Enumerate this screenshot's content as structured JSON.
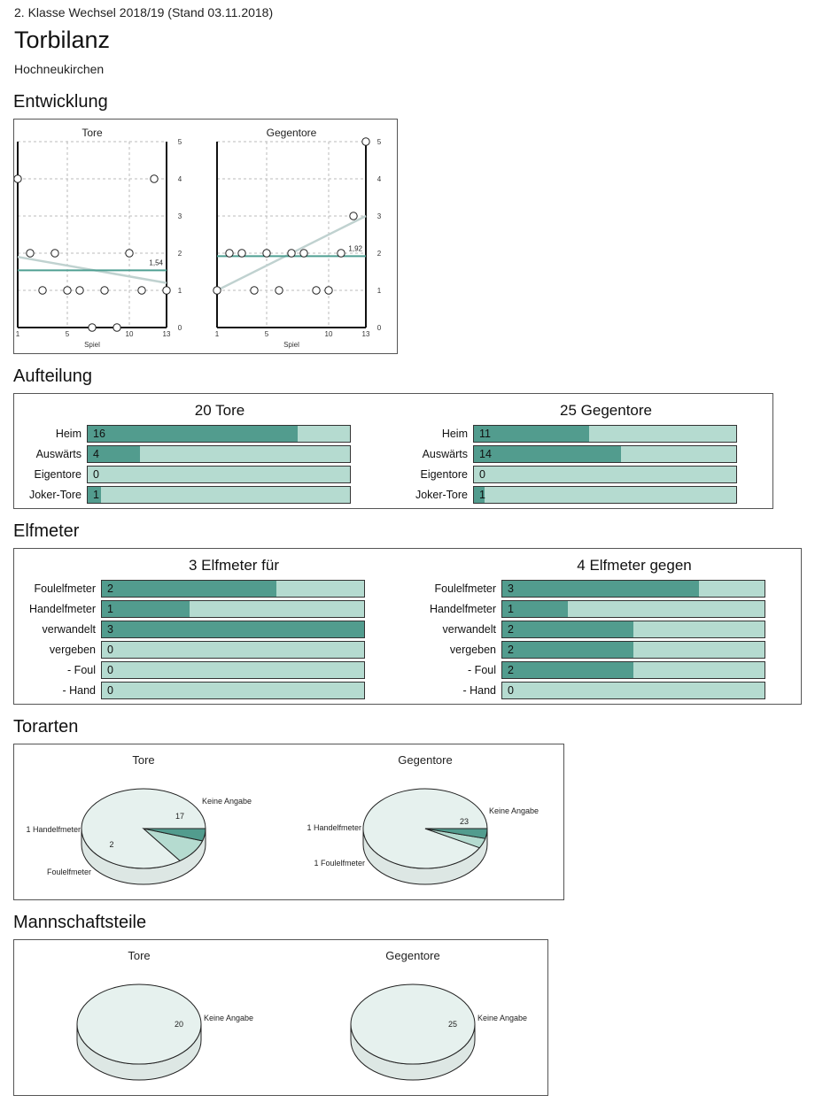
{
  "header": {
    "league": "2. Klasse Wechsel 2018/19 (Stand 03.11.2018)",
    "title": "Torbilanz",
    "team": "Hochneukirchen"
  },
  "sections": {
    "entwicklung": "Entwicklung",
    "aufteilung": "Aufteilung",
    "elfmeter": "Elfmeter",
    "torarten": "Torarten",
    "mannschaftsteile": "Mannschaftsteile"
  },
  "colors": {
    "dark": "#529c8e",
    "light": "#b5dbd0",
    "pie": "#e6f1ee",
    "trend": "#c0d2d0",
    "avg": "#4f9f92"
  },
  "chart_data": [
    {
      "type": "line",
      "title": "Tore",
      "xlabel": "Spiel",
      "x_ticks": [
        1,
        5,
        10,
        13
      ],
      "y_ticks": [
        0,
        1,
        2,
        3,
        4,
        5
      ],
      "ylim": [
        0,
        5
      ],
      "xlim": [
        1,
        13
      ],
      "games": [
        1,
        2,
        3,
        4,
        5,
        6,
        7,
        8,
        9,
        10,
        11,
        12,
        13
      ],
      "values": [
        4,
        2,
        1,
        2,
        1,
        1,
        0,
        1,
        0,
        2,
        1,
        4,
        1
      ],
      "average": 1.54,
      "average_label": "1,54",
      "trend": [
        1.9,
        1.2
      ]
    },
    {
      "type": "line",
      "title": "Gegentore",
      "xlabel": "Spiel",
      "x_ticks": [
        1,
        5,
        10,
        13
      ],
      "y_ticks": [
        0,
        1,
        2,
        3,
        4,
        5
      ],
      "ylim": [
        0,
        5
      ],
      "xlim": [
        1,
        13
      ],
      "games": [
        1,
        2,
        3,
        4,
        5,
        6,
        7,
        8,
        9,
        10,
        11,
        12,
        13
      ],
      "values": [
        1,
        2,
        2,
        1,
        2,
        1,
        2,
        2,
        1,
        1,
        2,
        3,
        5
      ],
      "average": 1.92,
      "average_label": "1,92",
      "trend": [
        1.0,
        3.0
      ]
    },
    {
      "type": "bar",
      "title": "20 Tore",
      "max": 20,
      "categories": [
        "Heim",
        "Auswärts",
        "Eigentore",
        "Joker-Tore"
      ],
      "values": [
        16,
        4,
        0,
        1
      ]
    },
    {
      "type": "bar",
      "title": "25 Gegentore",
      "max": 25,
      "categories": [
        "Heim",
        "Auswärts",
        "Eigentore",
        "Joker-Tore"
      ],
      "values": [
        11,
        14,
        0,
        1
      ]
    },
    {
      "type": "bar",
      "title": "3 Elfmeter für",
      "max": 3,
      "categories": [
        "Foulelfmeter",
        "Handelfmeter",
        "verwandelt",
        "vergeben",
        "- Foul",
        "- Hand"
      ],
      "values": [
        2,
        1,
        3,
        0,
        0,
        0
      ]
    },
    {
      "type": "bar",
      "title": "4 Elfmeter gegen",
      "max": 4,
      "categories": [
        "Foulelfmeter",
        "Handelfmeter",
        "verwandelt",
        "vergeben",
        "- Foul",
        "- Hand"
      ],
      "values": [
        3,
        1,
        2,
        2,
        2,
        0
      ]
    },
    {
      "type": "pie",
      "title": "Tore",
      "slices": [
        {
          "value": 17,
          "value_label": "17",
          "label": "Keine Angabe",
          "color": "#e6f1ee"
        },
        {
          "value": 2,
          "value_label": "2",
          "label": "Foulelfmeter",
          "color": "#b5dbd0"
        },
        {
          "value": 1,
          "value_label": "",
          "label": "1 Handelfmeter",
          "color": "#529c8e"
        }
      ]
    },
    {
      "type": "pie",
      "title": "Gegentore",
      "slices": [
        {
          "value": 23,
          "value_label": "23",
          "label": "Keine Angabe",
          "color": "#e6f1ee"
        },
        {
          "value": 1,
          "value_label": "",
          "label": "1 Foulelfmeter",
          "color": "#b5dbd0"
        },
        {
          "value": 1,
          "value_label": "",
          "label": "1 Handelfmeter",
          "color": "#529c8e"
        }
      ]
    },
    {
      "type": "pie",
      "title": "Tore",
      "slices": [
        {
          "value": 20,
          "value_label": "20",
          "label": "Keine Angabe",
          "color": "#e6f1ee"
        }
      ]
    },
    {
      "type": "pie",
      "title": "Gegentore",
      "slices": [
        {
          "value": 25,
          "value_label": "25",
          "label": "Keine Angabe",
          "color": "#e6f1ee"
        }
      ]
    }
  ]
}
